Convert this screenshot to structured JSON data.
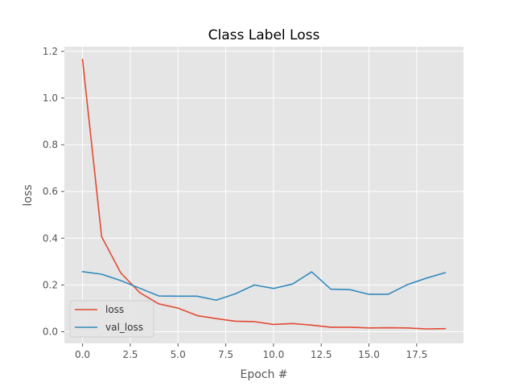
{
  "chart_data": {
    "type": "line",
    "title": "Class Label Loss",
    "xlabel": "Epoch #",
    "ylabel": "loss",
    "xlim": [
      -0.95,
      19.95
    ],
    "ylim": [
      -0.05,
      1.22
    ],
    "xticks": [
      0,
      2.5,
      5,
      7.5,
      10,
      12.5,
      15,
      17.5
    ],
    "xtick_labels": [
      "0.0",
      "2.5",
      "5.0",
      "7.5",
      "10.0",
      "12.5",
      "15.0",
      "17.5"
    ],
    "yticks": [
      0,
      0.2,
      0.4,
      0.6,
      0.8,
      1.0,
      1.2
    ],
    "ytick_labels": [
      "0.0",
      "0.2",
      "0.4",
      "0.6",
      "0.8",
      "1.0",
      "1.2"
    ],
    "grid": true,
    "legend_position": "lower-left",
    "x": [
      0,
      1,
      2,
      3,
      4,
      5,
      6,
      7,
      8,
      9,
      10,
      11,
      12,
      13,
      14,
      15,
      16,
      17,
      18,
      19
    ],
    "series": [
      {
        "name": "loss",
        "color": "#e24a33",
        "values": [
          1.165,
          0.407,
          0.252,
          0.167,
          0.119,
          0.101,
          0.069,
          0.056,
          0.045,
          0.043,
          0.031,
          0.035,
          0.028,
          0.019,
          0.019,
          0.016,
          0.017,
          0.016,
          0.012,
          0.013
        ]
      },
      {
        "name": "val_loss",
        "color": "#348abd",
        "values": [
          0.257,
          0.246,
          0.219,
          0.186,
          0.153,
          0.152,
          0.152,
          0.135,
          0.162,
          0.2,
          0.185,
          0.204,
          0.256,
          0.182,
          0.18,
          0.16,
          0.16,
          0.201,
          0.229,
          0.253
        ]
      }
    ]
  }
}
